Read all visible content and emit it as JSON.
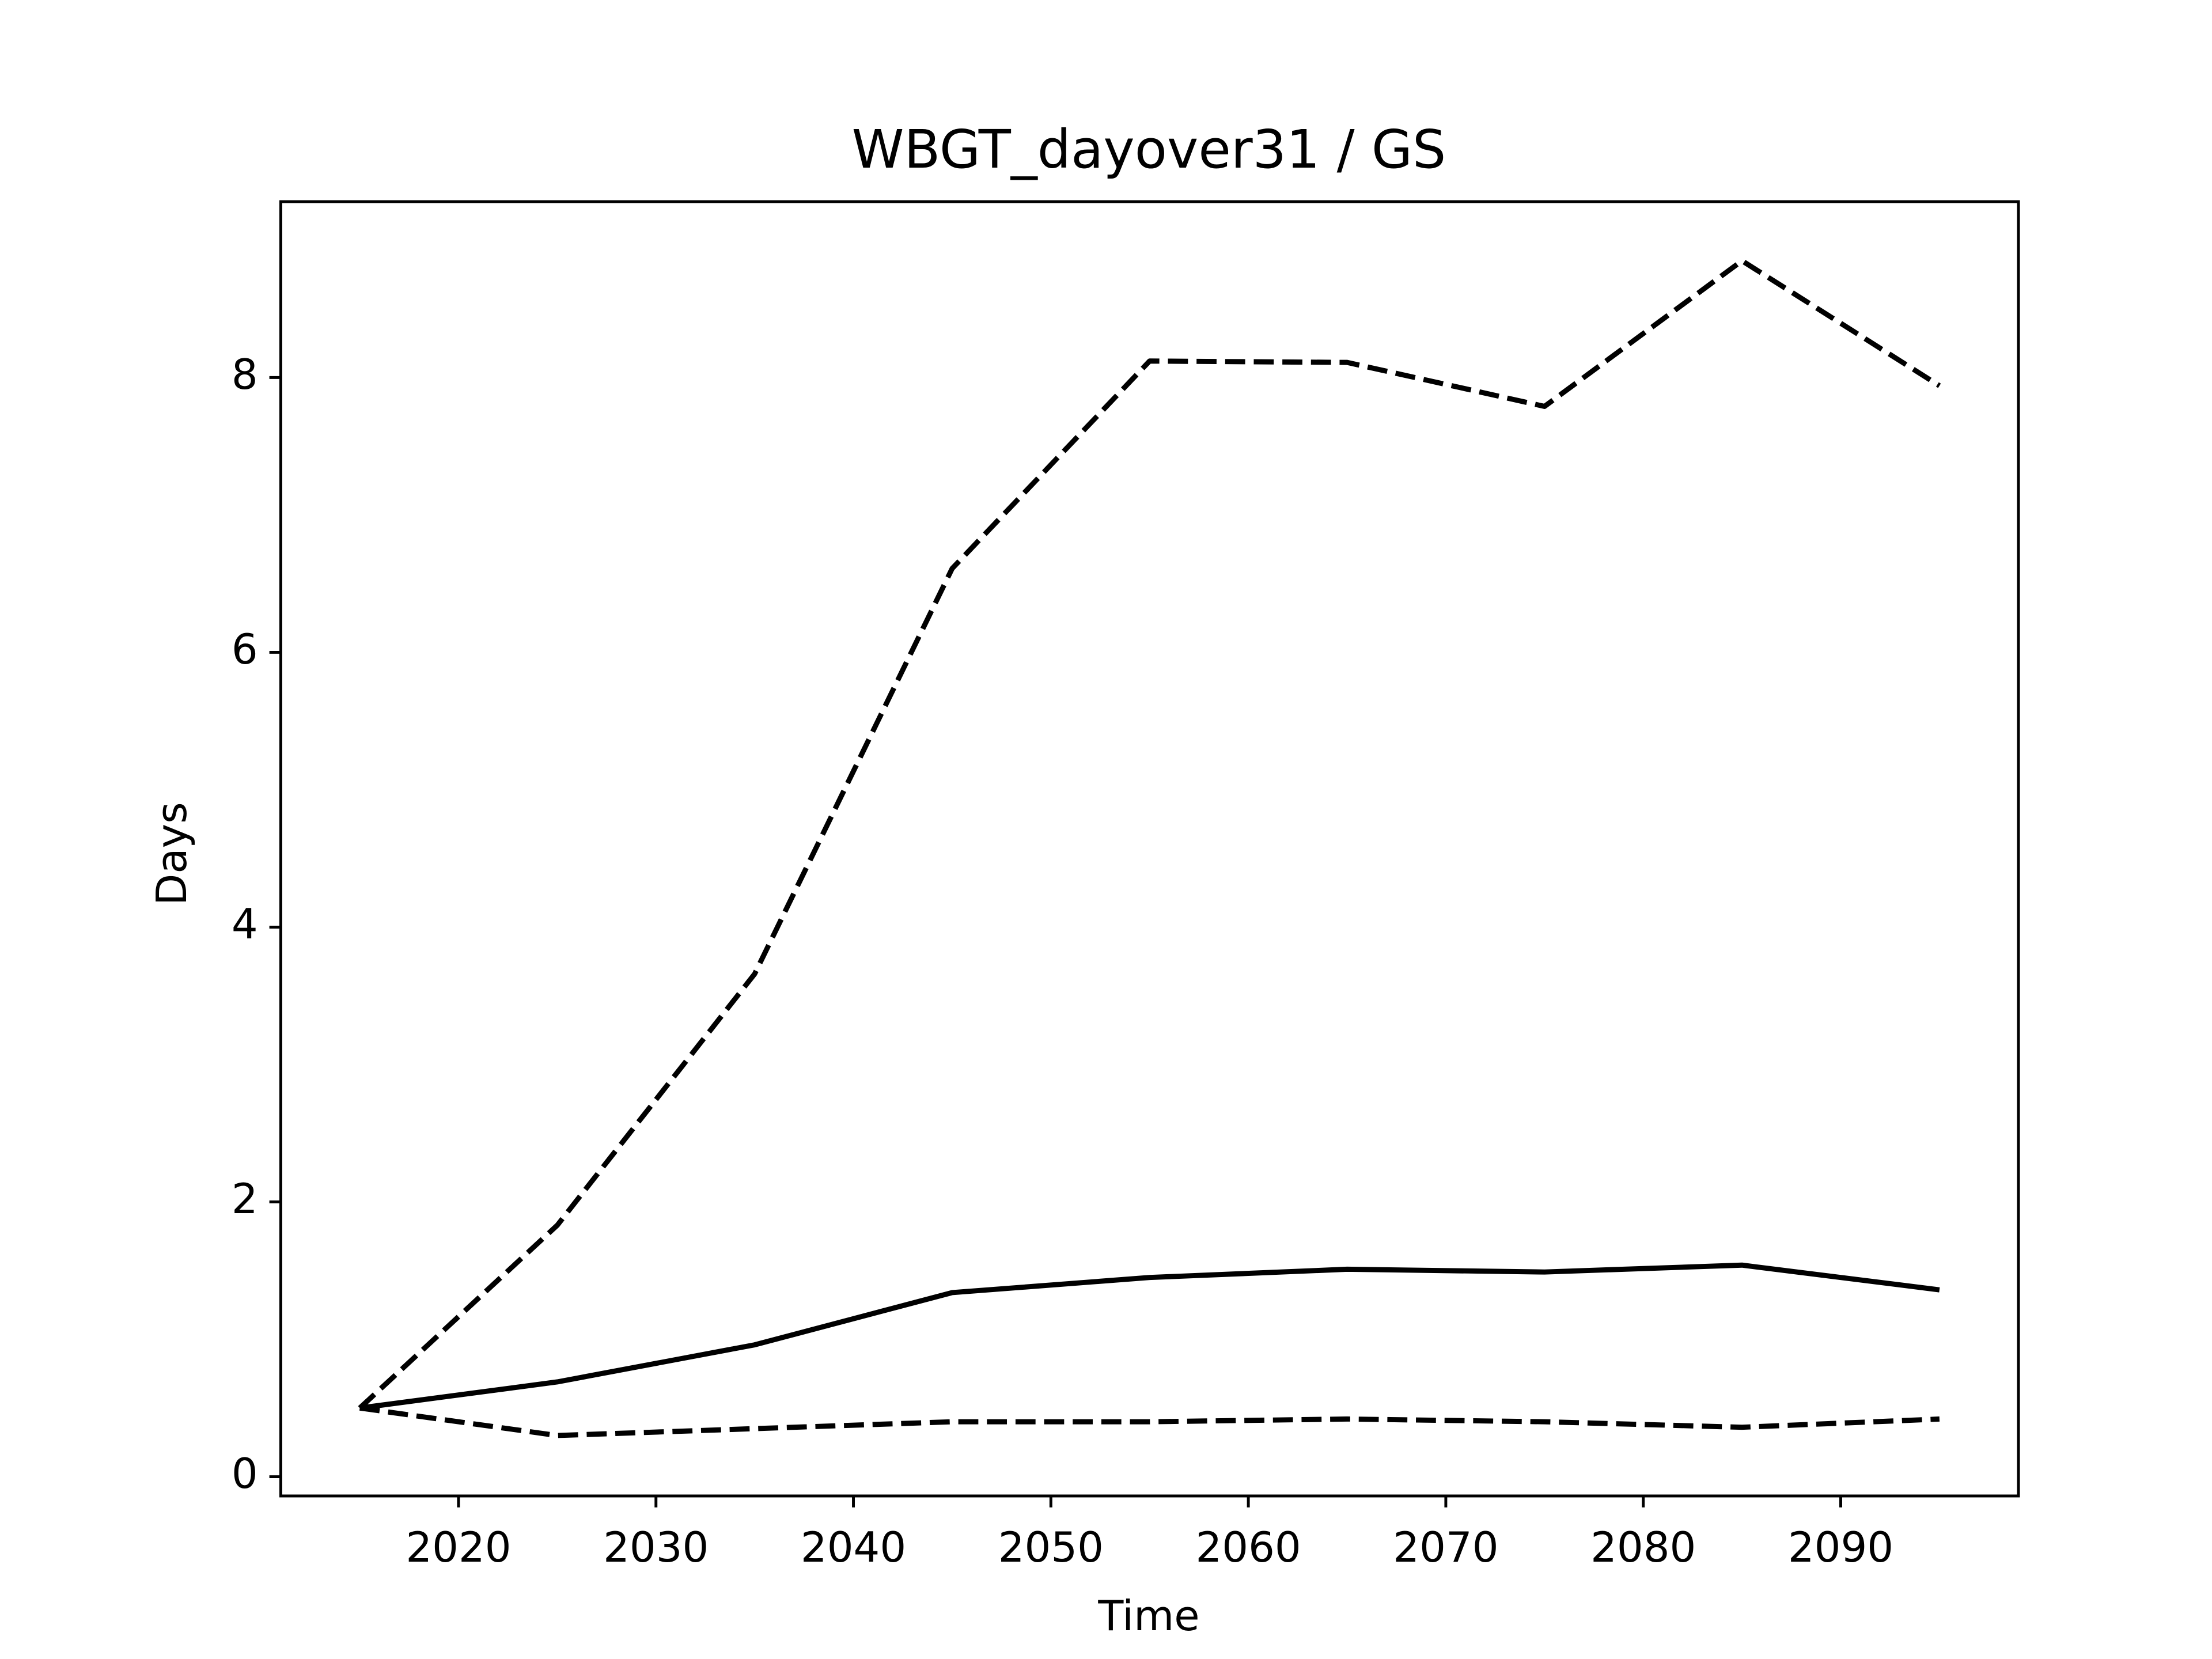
{
  "chart_data": {
    "type": "line",
    "title": "WBGT_dayover31 / GS",
    "x_label": "Time",
    "y_label": "Days",
    "x": [
      2015,
      2025,
      2035,
      2045,
      2055,
      2065,
      2075,
      2085,
      2095
    ],
    "series": [
      {
        "color": "#000000",
        "style": "dashed",
        "values": [
          0.5,
          1.83,
          3.66,
          6.61,
          8.12,
          8.11,
          7.79,
          8.85,
          7.94
        ]
      },
      {
        "color": "#000000",
        "style": "solid",
        "values": [
          0.5,
          0.69,
          0.96,
          1.34,
          1.45,
          1.51,
          1.49,
          1.54,
          1.36
        ]
      },
      {
        "color": "#000000",
        "style": "dashed",
        "values": [
          0.5,
          0.3,
          0.35,
          0.4,
          0.4,
          0.42,
          0.4,
          0.36,
          0.42
        ]
      }
    ],
    "xlim": [
      2011,
      2099
    ],
    "xticks": [
      2020,
      2030,
      2040,
      2050,
      2060,
      2070,
      2080,
      2090
    ],
    "ylim": [
      -0.14,
      9.28
    ],
    "yticks": [
      0,
      2,
      4,
      6,
      8
    ],
    "grid": false
  }
}
